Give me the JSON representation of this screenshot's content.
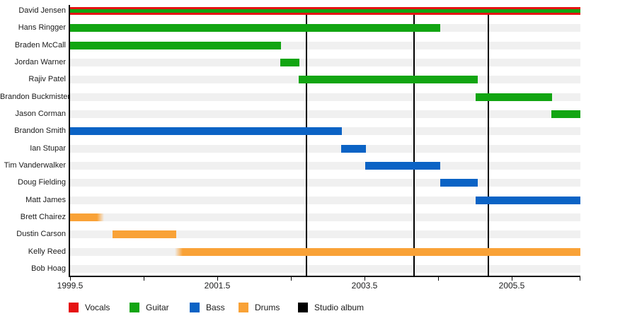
{
  "chart_data": {
    "type": "bar",
    "variant": "band-member-timeline-gantt",
    "title": "",
    "xlabel": "",
    "ylabel": "",
    "xlim": [
      1999.5,
      2006.43
    ],
    "grid": false,
    "legend_position": "bottom",
    "x_ticks": [
      {
        "year": 1999.5,
        "label": "1999.5"
      },
      {
        "year": 2000.5
      },
      {
        "year": 2001.5,
        "label": "2001.5"
      },
      {
        "year": 2002.5
      },
      {
        "year": 2003.5,
        "label": "2003.5"
      },
      {
        "year": 2004.5
      },
      {
        "year": 2005.5,
        "label": "2005.5"
      },
      {
        "year": 2006.5
      }
    ],
    "album_lines": [
      2002.71,
      2004.17,
      2005.18
    ],
    "legend": [
      {
        "label": "Vocals",
        "color": "#e51212"
      },
      {
        "label": "Guitar",
        "color": "#12a512"
      },
      {
        "label": "Bass",
        "color": "#0b63c5"
      },
      {
        "label": "Drums",
        "color": "#f9a237"
      },
      {
        "label": "Studio album",
        "color": "#000000"
      }
    ],
    "members": [
      {
        "name": "David Jensen",
        "bars": [
          {
            "role": "Vocals",
            "start": 1999.5,
            "end": 2006.43
          },
          {
            "role": "Guitar",
            "start": 1999.5,
            "end": 2006.43,
            "inner": true
          }
        ]
      },
      {
        "name": "Hans Ringger",
        "bars": [
          {
            "role": "Guitar",
            "start": 1999.5,
            "end": 2004.53
          }
        ]
      },
      {
        "name": "Braden McCall",
        "bars": [
          {
            "role": "Guitar",
            "start": 1999.5,
            "end": 2002.36
          }
        ]
      },
      {
        "name": "Jordan Warner",
        "bars": [
          {
            "role": "Guitar",
            "start": 2002.35,
            "end": 2002.61
          }
        ]
      },
      {
        "name": "Rajiv Patel",
        "bars": [
          {
            "role": "Guitar",
            "start": 2002.6,
            "end": 2005.04
          }
        ]
      },
      {
        "name": "Brandon Buckmister",
        "bars": [
          {
            "role": "Guitar",
            "start": 2005.01,
            "end": 2006.05
          }
        ]
      },
      {
        "name": "Jason Corman",
        "bars": [
          {
            "role": "Guitar",
            "start": 2006.04,
            "end": 2006.43
          }
        ]
      },
      {
        "name": "Brandon Smith",
        "bars": [
          {
            "role": "Bass",
            "start": 1999.5,
            "end": 2003.19
          }
        ]
      },
      {
        "name": "Ian Stupar",
        "bars": [
          {
            "role": "Bass",
            "start": 2003.18,
            "end": 2003.52
          }
        ]
      },
      {
        "name": "Tim Vanderwalker",
        "bars": [
          {
            "role": "Bass",
            "start": 2003.51,
            "end": 2004.53
          }
        ]
      },
      {
        "name": "Doug Fielding",
        "bars": [
          {
            "role": "Bass",
            "start": 2004.53,
            "end": 2005.04
          }
        ]
      },
      {
        "name": "Matt James",
        "bars": [
          {
            "role": "Bass",
            "start": 2005.01,
            "end": 2006.43
          }
        ]
      },
      {
        "name": "Brett Chairez",
        "bars": [
          {
            "role": "Drums",
            "start": 1999.5,
            "end": 1999.96,
            "fade_end": true
          }
        ]
      },
      {
        "name": "Dustin Carson",
        "bars": [
          {
            "role": "Drums",
            "start": 2000.08,
            "end": 2000.94
          }
        ]
      },
      {
        "name": "Kelly Reed",
        "bars": [
          {
            "role": "Drums",
            "start": 2000.92,
            "end": 2006.43,
            "fade_start": true
          }
        ]
      },
      {
        "name": "Bob Hoag",
        "bars": []
      }
    ]
  }
}
